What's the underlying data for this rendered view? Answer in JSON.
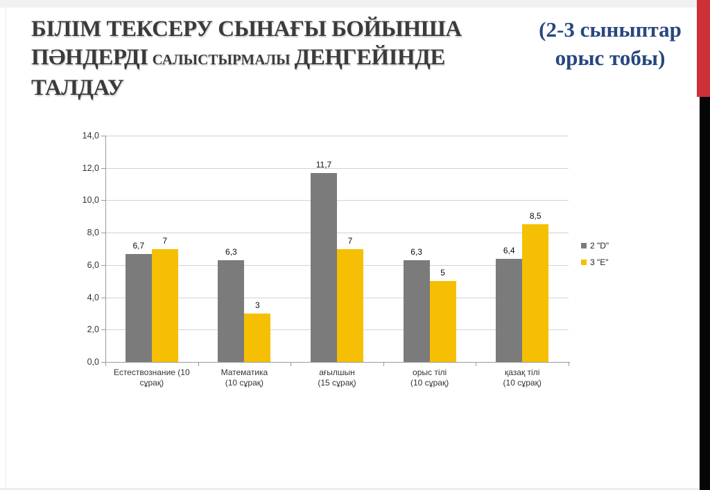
{
  "title": {
    "line1": "БІЛІМ ТЕКСЕРУ СЫНАҒЫ БОЙЫНША",
    "line2_lead": "ПӘНДЕРДІ",
    "line2_small": "САЛЫСТЫРМАЛЫ",
    "line2_tail": "ДЕҢГЕЙІНДЕ ТАЛДАУ",
    "color": "#3B3B3D"
  },
  "subtitle": {
    "line1": "(2-3 сыныптар",
    "line2": "орыс тобы)",
    "color": "#27477F"
  },
  "decor": {
    "red_stripe_color": "#CE3038",
    "black_stripe_color": "#060606"
  },
  "chart_data": {
    "type": "bar",
    "categories": [
      [
        "Естествознание (10",
        "сұрақ)"
      ],
      [
        "Математика",
        "(10 сұрақ)"
      ],
      [
        "ағылшын",
        "(15 сұрақ)"
      ],
      [
        "орыс тілі",
        "(10 сұрақ)"
      ],
      [
        "қазақ тілі",
        "(10 сұрақ)"
      ]
    ],
    "series": [
      {
        "name": "2 \"D\"",
        "color": "#7B7B7B",
        "values": [
          6.7,
          6.3,
          11.7,
          6.3,
          6.4
        ],
        "labels": [
          "6,7",
          "6,3",
          "11,7",
          "6,3",
          "6,4"
        ]
      },
      {
        "name": "3 \"E\"",
        "color": "#F5C003",
        "values": [
          7,
          3,
          7,
          5,
          8.5
        ],
        "labels": [
          "7",
          "3",
          "7",
          "5",
          "8,5"
        ]
      }
    ],
    "y_tick_labels": [
      "0,0",
      "2,0",
      "4,0",
      "6,0",
      "8,0",
      "10,0",
      "12,0",
      "14,0"
    ],
    "y_step": 2,
    "ylim": [
      0,
      14
    ],
    "grid": true,
    "legend_position": "right",
    "xlabel": "",
    "ylabel": ""
  }
}
